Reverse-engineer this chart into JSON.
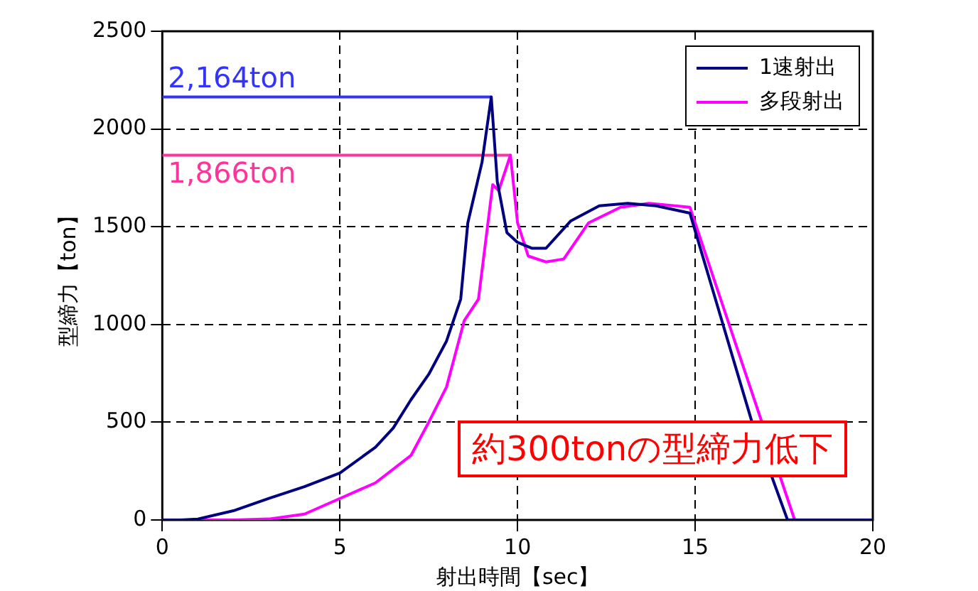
{
  "chart_data": {
    "type": "line",
    "xlabel": "射出時間【sec】",
    "ylabel": "型締力【ton】",
    "xlim": [
      0,
      20
    ],
    "xticks": [
      0,
      5,
      10,
      15,
      20
    ],
    "ylim": [
      0,
      2500
    ],
    "yticks": [
      0,
      500,
      1000,
      1500,
      2000,
      2500
    ],
    "grid": true,
    "legend": "top right",
    "marker": "none",
    "series": [
      {
        "name": "1速射出",
        "color": "#000080",
        "x": [
          0,
          0.5,
          1,
          2,
          3,
          4,
          5,
          6,
          6.5,
          7,
          7.5,
          8,
          8.4,
          8.6,
          9,
          9.26,
          9.43,
          9.7,
          10,
          10.4,
          10.8,
          11.5,
          12.3,
          13.1,
          13.9,
          14.85,
          16.6,
          17.6,
          20
        ],
        "values": [
          0,
          0,
          5,
          47,
          110,
          170,
          240,
          372,
          470,
          615,
          745,
          915,
          1130,
          1520,
          1830,
          2164,
          1730,
          1470,
          1420,
          1390,
          1390,
          1530,
          1607,
          1620,
          1607,
          1570,
          500,
          0,
          0
        ]
      },
      {
        "name": "多段射出",
        "color": "#ff00ff",
        "x": [
          0,
          2,
          3,
          4,
          5,
          6,
          7,
          7.5,
          8,
          8.5,
          8.9,
          9.3,
          9.47,
          9.8,
          10,
          10.3,
          10.8,
          11.3,
          12,
          12.9,
          13.7,
          14.85,
          17.8,
          20
        ],
        "values": [
          0,
          0,
          5,
          30,
          110,
          190,
          330,
          500,
          680,
          1020,
          1130,
          1715,
          1685,
          1866,
          1520,
          1350,
          1320,
          1335,
          1520,
          1600,
          1620,
          1600,
          0,
          0
        ]
      },
      {
        "color": "#3333ff",
        "x": [
          0,
          9.26
        ],
        "values": [
          2164,
          2164
        ]
      },
      {
        "color": "#ff3399",
        "x": [
          0,
          9.8
        ],
        "values": [
          1866,
          1866
        ]
      }
    ],
    "annotations": [
      {
        "text": "2,164ton",
        "x": 0,
        "y": 2164
      },
      {
        "text": "1,866ton",
        "x": 0,
        "y": 1866
      },
      "約300tonの型締力低下"
    ]
  }
}
